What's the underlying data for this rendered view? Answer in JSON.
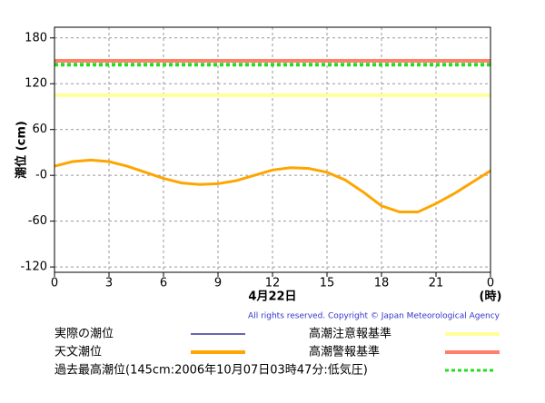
{
  "chart_data": {
    "type": "line",
    "ylabel": "潮位 (cm)",
    "xlabel": "4月22日",
    "xunit": "(時)",
    "copyright": "All rights reserved. Copyright © Japan Meteorological Agency",
    "x": [
      0,
      1,
      2,
      3,
      4,
      5,
      6,
      7,
      8,
      9,
      10,
      11,
      12,
      13,
      14,
      15,
      16,
      17,
      18,
      19,
      20,
      21,
      22,
      23,
      24
    ],
    "xlim": [
      0,
      24
    ],
    "xticks": [
      0,
      3,
      6,
      9,
      12,
      15,
      18,
      21,
      {
        "value": 24,
        "label": "0"
      }
    ],
    "ylim": [
      -127,
      194
    ],
    "yticks": [
      180,
      120,
      60,
      {
        "value": 0,
        "label": "-0"
      },
      -60,
      -120
    ],
    "grid": true,
    "series": [
      {
        "name": "実際の潮位",
        "color": "#333399",
        "values": [
          null,
          null,
          null,
          null,
          null,
          null,
          null,
          null,
          null,
          null,
          null,
          null,
          null,
          null,
          null,
          null,
          null,
          null,
          null,
          null,
          null,
          null,
          null,
          null,
          null
        ]
      },
      {
        "name": "天文潮位",
        "color": "#ffa500",
        "values": [
          12,
          18,
          20,
          18,
          12,
          4,
          -4,
          -10,
          -12,
          -11,
          -7,
          0,
          7,
          10,
          9,
          4,
          -6,
          -22,
          -40,
          -48,
          -48,
          -37,
          -24,
          -9,
          6
        ]
      }
    ],
    "reference_lines": [
      {
        "name": "高潮注意報基準",
        "color": "#ffff99",
        "value": 105,
        "style": "solid"
      },
      {
        "name": "高潮警報基準",
        "color": "#ff7f6a",
        "value": 150,
        "style": "solid"
      },
      {
        "name": "過去最高潮位(145cm:2006年10月07日03時47分:低気圧)",
        "color": "#22dd22",
        "value": 145,
        "style": "dashed"
      }
    ]
  }
}
